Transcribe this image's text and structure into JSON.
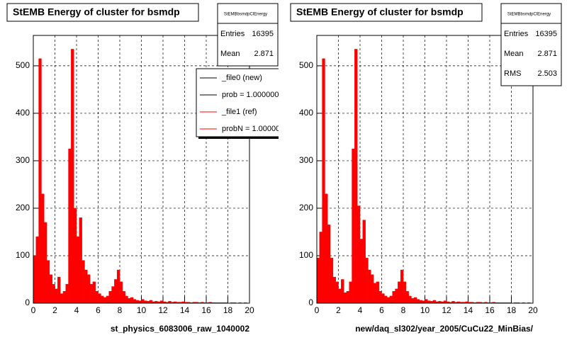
{
  "chart_data": [
    {
      "type": "histogram",
      "title": "StEMB Energy of cluster for bsmdp",
      "xlabel": "st_physics_6083006_raw_1040002",
      "color": "#ff0000",
      "grid": true,
      "bins": [
        0,
        0.25,
        0.5,
        0.75,
        1,
        1.25,
        1.5,
        1.75,
        2,
        2.25,
        2.5,
        2.75,
        3,
        3.25,
        3.5,
        3.75,
        4,
        4.25,
        4.5,
        4.75,
        5,
        5.25,
        5.5,
        5.75,
        6,
        6.25,
        6.5,
        6.75,
        7,
        7.25,
        7.5,
        7.75,
        8,
        8.25,
        8.5,
        8.75,
        9,
        9.25,
        9.5,
        9.75,
        10,
        10.25,
        10.5,
        10.75,
        11,
        11.25,
        11.5,
        11.75,
        12,
        12.25,
        12.5,
        12.75,
        13,
        13.25,
        13.5,
        13.75,
        14,
        14.25,
        14.5,
        14.75,
        15,
        15.25,
        15.5,
        15.75,
        16,
        16.25,
        16.5,
        16.75,
        17,
        17.25,
        17.5,
        17.75,
        18,
        18.25,
        18.5,
        18.75,
        19,
        19.25,
        19.5,
        19.75,
        20
      ],
      "values": [
        100,
        140,
        515,
        230,
        170,
        90,
        60,
        40,
        30,
        55,
        20,
        25,
        40,
        325,
        535,
        200,
        140,
        180,
        90,
        70,
        60,
        40,
        45,
        25,
        20,
        15,
        12,
        15,
        25,
        35,
        50,
        70,
        45,
        25,
        15,
        10,
        12,
        8,
        6,
        5,
        8,
        5,
        4,
        6,
        3,
        4,
        3,
        5,
        3,
        2,
        4,
        2,
        3,
        2,
        2,
        3,
        2,
        2,
        1,
        2,
        2,
        1,
        2,
        1,
        1,
        2,
        1,
        1,
        1,
        1,
        1,
        1,
        0,
        1,
        1,
        0,
        1,
        0,
        1,
        0
      ],
      "xlim": [
        0,
        20
      ],
      "ylim": [
        0,
        564
      ],
      "xticks": [
        0,
        2,
        4,
        6,
        8,
        10,
        12,
        14,
        16,
        18,
        20
      ],
      "yticks": [
        0,
        100,
        200,
        300,
        400,
        500
      ],
      "stats": {
        "name": "StEMBbsmdpClEnergy",
        "rows": [
          {
            "label": "Entries",
            "value": 16395
          },
          {
            "label": "Mean",
            "value": 2.871
          }
        ]
      },
      "legend": [
        {
          "label": "_file0 (new)",
          "color": "#000000"
        },
        {
          "label": "prob = 1.000000",
          "color": "#000000"
        },
        {
          "label": "_file1 (ref)",
          "color": "#ff0000"
        },
        {
          "label": "probN = 1.00000",
          "color": "#ff0000"
        }
      ]
    },
    {
      "type": "histogram",
      "title": "StEMB Energy of cluster for bsmdp",
      "xlabel": "new/daq_sl302/year_2005/CuCu22_MinBias/",
      "color": "#ff0000",
      "grid": true,
      "bins": [
        0,
        0.25,
        0.5,
        0.75,
        1,
        1.25,
        1.5,
        1.75,
        2,
        2.25,
        2.5,
        2.75,
        3,
        3.25,
        3.5,
        3.75,
        4,
        4.25,
        4.5,
        4.75,
        5,
        5.25,
        5.5,
        5.75,
        6,
        6.25,
        6.5,
        6.75,
        7,
        7.25,
        7.5,
        7.75,
        8,
        8.25,
        8.5,
        8.75,
        9,
        9.25,
        9.5,
        9.75,
        10,
        10.25,
        10.5,
        10.75,
        11,
        11.25,
        11.5,
        11.75,
        12,
        12.25,
        12.5,
        12.75,
        13,
        13.25,
        13.5,
        13.75,
        14,
        14.25,
        14.5,
        14.75,
        15,
        15.25,
        15.5,
        15.75,
        16,
        16.25,
        16.5,
        16.75,
        17,
        17.25,
        17.5,
        17.75,
        18,
        18.25,
        18.5,
        18.75,
        19,
        19.25,
        19.5,
        19.75,
        20
      ],
      "values": [
        95,
        150,
        515,
        230,
        165,
        95,
        55,
        45,
        30,
        50,
        22,
        25,
        45,
        325,
        535,
        205,
        135,
        175,
        95,
        70,
        60,
        42,
        45,
        25,
        20,
        15,
        12,
        15,
        25,
        30,
        45,
        70,
        45,
        25,
        15,
        10,
        12,
        8,
        6,
        5,
        8,
        5,
        4,
        6,
        3,
        4,
        3,
        5,
        3,
        2,
        4,
        2,
        3,
        2,
        2,
        3,
        2,
        2,
        1,
        2,
        2,
        1,
        2,
        1,
        1,
        2,
        1,
        1,
        1,
        1,
        1,
        1,
        0,
        1,
        1,
        0,
        1,
        0,
        1,
        0
      ],
      "xlim": [
        0,
        20
      ],
      "ylim": [
        0,
        564
      ],
      "xticks": [
        0,
        2,
        4,
        6,
        8,
        10,
        12,
        14,
        16,
        18,
        20
      ],
      "yticks": [
        0,
        100,
        200,
        300,
        400,
        500
      ],
      "stats": {
        "name": "StEMBbsmdpClEnergy",
        "rows": [
          {
            "label": "Entries",
            "value": 16395
          },
          {
            "label": "Mean",
            "value": 2.871
          },
          {
            "label": "RMS",
            "value": 2.503
          }
        ]
      }
    }
  ]
}
